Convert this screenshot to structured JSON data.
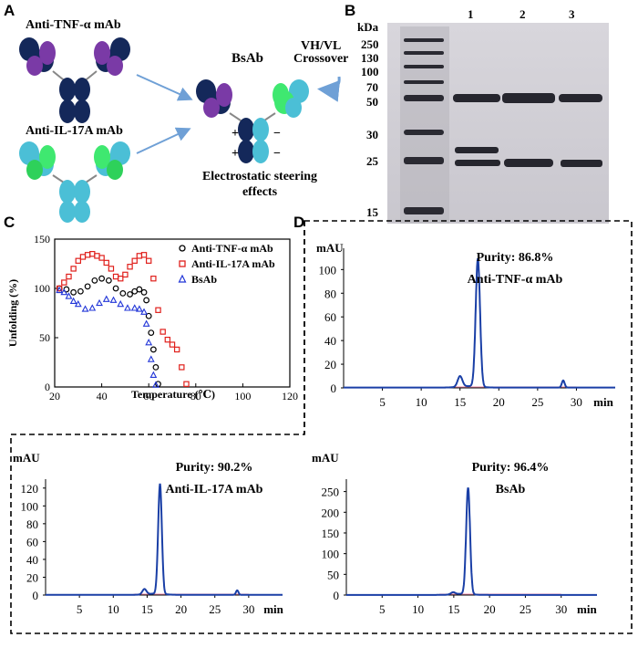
{
  "panels": {
    "a": "A",
    "b": "B",
    "c": "C",
    "d": "D"
  },
  "schematic": {
    "tnf_label": "Anti-TNF-α  mAb",
    "il17_label": "Anti-IL-17A mAb",
    "bsab_label": "BsAb",
    "crossover_line1": "VH/VL",
    "crossover_line2": "Crossover",
    "steering_line1": "Electrostatic steering",
    "steering_line2": "effects",
    "charges": [
      "+",
      "+",
      "−",
      "−"
    ],
    "colors": {
      "heavy_chain": "#14285a",
      "tnf_light": "#7a3aa6",
      "il17_heavy": "#4bbfd6",
      "il17_light": "#3fe870",
      "arrow": "#6fa0d6"
    }
  },
  "gel": {
    "unit_label": "kDa",
    "markers": [
      "250",
      "130",
      "100",
      "70",
      "50",
      "30",
      "25",
      "15"
    ],
    "lanes": [
      "1",
      "2",
      "3"
    ]
  },
  "melt": {
    "chart_data": {
      "type": "scatter",
      "xlabel": "Temperature (℃)",
      "ylabel": "Unfolding (%)",
      "xlim": [
        20,
        120
      ],
      "ylim": [
        0,
        150
      ],
      "xticks": [
        "20",
        "40",
        "60",
        "80",
        "100",
        "120"
      ],
      "yticks": [
        "0",
        "50",
        "100",
        "150"
      ],
      "series": [
        {
          "name": "Anti-TNF-α  mAb",
          "marker": "circle",
          "color": "#000000",
          "x": [
            22,
            25,
            28,
            31,
            34,
            37,
            40,
            43,
            46,
            49,
            52,
            54,
            56,
            58,
            59,
            60,
            61,
            62,
            63,
            64
          ],
          "y": [
            100,
            99,
            96,
            97,
            102,
            108,
            110,
            108,
            100,
            95,
            94,
            97,
            99,
            96,
            88,
            72,
            55,
            38,
            20,
            3
          ]
        },
        {
          "name": "Anti-IL-17A mAb",
          "marker": "square",
          "color": "#e0201c",
          "x": [
            22,
            24,
            26,
            28,
            30,
            32,
            34,
            36,
            38,
            40,
            42,
            44,
            46,
            48,
            50,
            52,
            54,
            56,
            58,
            60,
            62,
            64,
            66,
            68,
            70,
            72,
            74,
            76
          ],
          "y": [
            100,
            106,
            112,
            120,
            128,
            132,
            134,
            135,
            133,
            131,
            126,
            120,
            112,
            110,
            114,
            122,
            128,
            133,
            134,
            128,
            110,
            78,
            56,
            48,
            43,
            38,
            20,
            3
          ]
        },
        {
          "name": "BsAb",
          "marker": "triangle",
          "color": "#2236d8",
          "x": [
            22,
            24,
            26,
            28,
            30,
            33,
            36,
            39,
            42,
            45,
            48,
            51,
            54,
            56,
            58,
            59,
            60,
            61,
            62,
            63
          ],
          "y": [
            98,
            96,
            92,
            87,
            84,
            79,
            80,
            85,
            89,
            88,
            84,
            80,
            80,
            79,
            76,
            64,
            45,
            28,
            12,
            2
          ]
        }
      ]
    }
  },
  "chromatograms": {
    "y_unit": "mAU",
    "x_unit": "min",
    "charts": [
      {
        "chart_data": {
          "type": "line",
          "title": "Anti-TNF-α  mAb",
          "purity": "Purity: 86.8%",
          "xlabel": "min",
          "ylabel": "mAU",
          "xlim": [
            0,
            35
          ],
          "ylim": [
            0,
            118
          ],
          "xticks": [
            "5",
            "10",
            "15",
            "20",
            "25",
            "30"
          ],
          "yticks": [
            "0",
            "20",
            "40",
            "60",
            "80",
            "100"
          ],
          "peaks": [
            {
              "rt": 15.0,
              "height": 9,
              "width": 0.3
            },
            {
              "rt": 17.3,
              "height": 108,
              "width": 0.28
            },
            {
              "rt": 28.3,
              "height": 6,
              "width": 0.18
            }
          ],
          "color": "#1a3fa6"
        }
      },
      {
        "chart_data": {
          "type": "line",
          "title": "Anti-IL-17A mAb",
          "purity": "Purity: 90.2%",
          "xlabel": "min",
          "ylabel": "mAU",
          "xlim": [
            0,
            35
          ],
          "ylim": [
            0,
            130
          ],
          "xticks": [
            "5",
            "10",
            "15",
            "20",
            "25",
            "30"
          ],
          "yticks": [
            "0",
            "20",
            "40",
            "60",
            "80",
            "100",
            "120"
          ],
          "peaks": [
            {
              "rt": 14.6,
              "height": 6,
              "width": 0.3
            },
            {
              "rt": 16.9,
              "height": 123,
              "width": 0.27
            },
            {
              "rt": 28.3,
              "height": 5,
              "width": 0.18
            }
          ],
          "color": "#1a3fa6"
        }
      },
      {
        "chart_data": {
          "type": "line",
          "title": "BsAb",
          "purity": "Purity: 96.4%",
          "xlabel": "min",
          "ylabel": "mAU",
          "xlim": [
            0,
            35
          ],
          "ylim": [
            0,
            280
          ],
          "xticks": [
            "5",
            "10",
            "15",
            "20",
            "25",
            "30"
          ],
          "yticks": [
            "0",
            "50",
            "100",
            "150",
            "200",
            "250"
          ],
          "peaks": [
            {
              "rt": 14.9,
              "height": 5,
              "width": 0.3
            },
            {
              "rt": 17.0,
              "height": 257,
              "width": 0.27
            }
          ],
          "color": "#1a3fa6"
        }
      }
    ]
  }
}
